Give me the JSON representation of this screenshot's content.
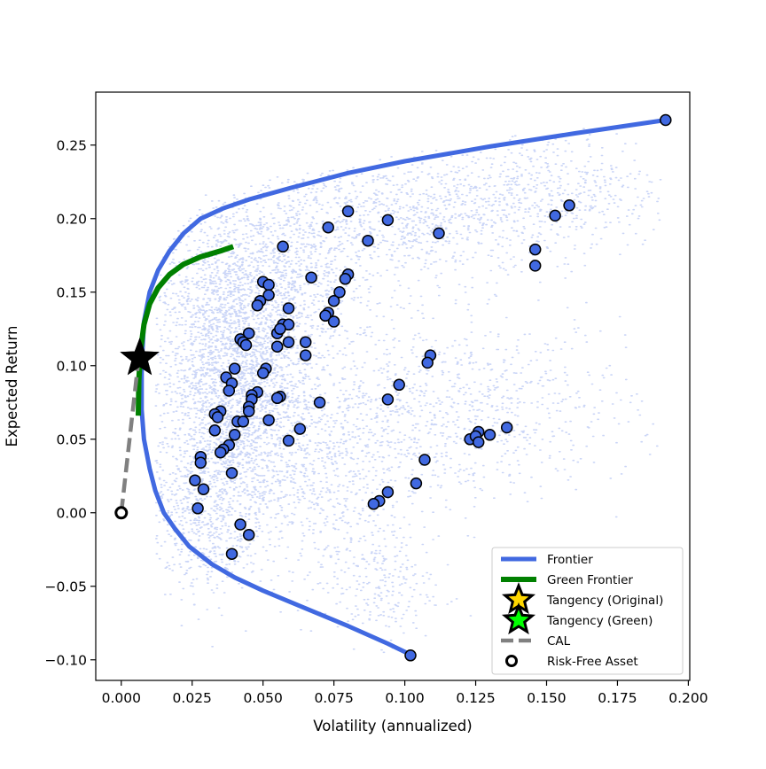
{
  "chart_data": {
    "type": "scatter",
    "title": "",
    "xlabel": "Volatility (annualized)",
    "ylabel": "Expected Return",
    "xlim": [
      -0.009,
      0.2005
    ],
    "ylim": [
      -0.114,
      0.286
    ],
    "xticks": [
      0.0,
      0.025,
      0.05,
      0.075,
      0.1,
      0.125,
      0.15,
      0.175,
      0.2
    ],
    "xtick_labels": [
      "0.000",
      "0.025",
      "0.050",
      "0.075",
      "0.100",
      "0.125",
      "0.150",
      "0.175",
      "0.200"
    ],
    "yticks": [
      -0.1,
      -0.05,
      0.0,
      0.05,
      0.1,
      0.15,
      0.2,
      0.25
    ],
    "ytick_labels": [
      "−0.10",
      "−0.05",
      "0.00",
      "0.05",
      "0.10",
      "0.15",
      "0.20",
      "0.25"
    ],
    "grid": false,
    "legend_position": "bottom-right",
    "colors": {
      "frontier": "#4169e1",
      "green_frontier": "#008000",
      "assets_fill": "#4169e1",
      "cloud": "#4169e1",
      "cal": "#808080",
      "tangency_original": "#ffd700",
      "tangency_green": "#00ff00"
    },
    "legend": [
      {
        "label": "Frontier",
        "kind": "line",
        "key": "frontier"
      },
      {
        "label": "Green Frontier",
        "kind": "line",
        "key": "green_frontier"
      },
      {
        "label": "Tangency (Original)",
        "kind": "star",
        "key": "tangency_original"
      },
      {
        "label": "Tangency (Green)",
        "kind": "star",
        "key": "tangency_green"
      },
      {
        "label": "CAL",
        "kind": "dashed",
        "key": "cal"
      },
      {
        "label": "Risk-Free Asset",
        "kind": "ring",
        "key": "rf"
      }
    ],
    "frontier": {
      "x": [
        0.1015,
        0.094,
        0.08,
        0.065,
        0.05,
        0.04,
        0.032,
        0.024,
        0.019,
        0.015,
        0.012,
        0.01,
        0.008,
        0.0072,
        0.0072,
        0.008,
        0.01,
        0.013,
        0.017,
        0.022,
        0.028,
        0.036,
        0.045,
        0.06,
        0.08,
        0.1,
        0.13,
        0.16,
        0.192
      ],
      "y": [
        -0.096,
        -0.089,
        -0.077,
        -0.065,
        -0.053,
        -0.044,
        -0.035,
        -0.023,
        -0.011,
        0.0,
        0.015,
        0.03,
        0.05,
        0.07,
        0.1,
        0.13,
        0.15,
        0.165,
        0.178,
        0.19,
        0.2,
        0.207,
        0.213,
        0.221,
        0.231,
        0.239,
        0.249,
        0.258,
        0.267
      ]
    },
    "green_frontier": {
      "x": [
        0.006,
        0.0062,
        0.0068,
        0.008,
        0.01,
        0.013,
        0.017,
        0.022,
        0.028,
        0.035,
        0.0395
      ],
      "y": [
        0.066,
        0.09,
        0.11,
        0.128,
        0.142,
        0.153,
        0.162,
        0.169,
        0.174,
        0.178,
        0.181
      ]
    },
    "cal": {
      "x": [
        0.0,
        0.0062
      ],
      "y": [
        0.0,
        0.106
      ]
    },
    "tangency_original": {
      "x": 0.0065,
      "y": 0.105
    },
    "tangency_green": {
      "x": 0.0065,
      "y": 0.105
    },
    "risk_free_asset": {
      "x": 0.0,
      "y": 0.0
    },
    "random_portfolios_note": "thousands of simulated portfolio points (light blue cloud)",
    "assets": [
      {
        "x": 0.192,
        "y": 0.267
      },
      {
        "x": 0.158,
        "y": 0.209
      },
      {
        "x": 0.153,
        "y": 0.202
      },
      {
        "x": 0.146,
        "y": 0.179
      },
      {
        "x": 0.146,
        "y": 0.168
      },
      {
        "x": 0.08,
        "y": 0.205
      },
      {
        "x": 0.094,
        "y": 0.199
      },
      {
        "x": 0.073,
        "y": 0.194
      },
      {
        "x": 0.112,
        "y": 0.19
      },
      {
        "x": 0.087,
        "y": 0.185
      },
      {
        "x": 0.057,
        "y": 0.181
      },
      {
        "x": 0.08,
        "y": 0.162
      },
      {
        "x": 0.079,
        "y": 0.159
      },
      {
        "x": 0.067,
        "y": 0.16
      },
      {
        "x": 0.05,
        "y": 0.157
      },
      {
        "x": 0.052,
        "y": 0.155
      },
      {
        "x": 0.077,
        "y": 0.15
      },
      {
        "x": 0.052,
        "y": 0.148
      },
      {
        "x": 0.075,
        "y": 0.144
      },
      {
        "x": 0.049,
        "y": 0.144
      },
      {
        "x": 0.048,
        "y": 0.141
      },
      {
        "x": 0.059,
        "y": 0.139
      },
      {
        "x": 0.073,
        "y": 0.136
      },
      {
        "x": 0.072,
        "y": 0.134
      },
      {
        "x": 0.075,
        "y": 0.13
      },
      {
        "x": 0.057,
        "y": 0.128
      },
      {
        "x": 0.059,
        "y": 0.128
      },
      {
        "x": 0.055,
        "y": 0.122
      },
      {
        "x": 0.056,
        "y": 0.125
      },
      {
        "x": 0.045,
        "y": 0.122
      },
      {
        "x": 0.042,
        "y": 0.118
      },
      {
        "x": 0.043,
        "y": 0.116
      },
      {
        "x": 0.044,
        "y": 0.114
      },
      {
        "x": 0.059,
        "y": 0.116
      },
      {
        "x": 0.065,
        "y": 0.116
      },
      {
        "x": 0.055,
        "y": 0.113
      },
      {
        "x": 0.065,
        "y": 0.107
      },
      {
        "x": 0.109,
        "y": 0.107
      },
      {
        "x": 0.108,
        "y": 0.102
      },
      {
        "x": 0.04,
        "y": 0.098
      },
      {
        "x": 0.051,
        "y": 0.098
      },
      {
        "x": 0.05,
        "y": 0.095
      },
      {
        "x": 0.037,
        "y": 0.092
      },
      {
        "x": 0.039,
        "y": 0.088
      },
      {
        "x": 0.098,
        "y": 0.087
      },
      {
        "x": 0.038,
        "y": 0.083
      },
      {
        "x": 0.048,
        "y": 0.082
      },
      {
        "x": 0.046,
        "y": 0.08
      },
      {
        "x": 0.056,
        "y": 0.079
      },
      {
        "x": 0.055,
        "y": 0.078
      },
      {
        "x": 0.046,
        "y": 0.077
      },
      {
        "x": 0.094,
        "y": 0.077
      },
      {
        "x": 0.07,
        "y": 0.075
      },
      {
        "x": 0.045,
        "y": 0.072
      },
      {
        "x": 0.045,
        "y": 0.069
      },
      {
        "x": 0.035,
        "y": 0.069
      },
      {
        "x": 0.033,
        "y": 0.067
      },
      {
        "x": 0.034,
        "y": 0.065
      },
      {
        "x": 0.041,
        "y": 0.062
      },
      {
        "x": 0.043,
        "y": 0.062
      },
      {
        "x": 0.052,
        "y": 0.063
      },
      {
        "x": 0.063,
        "y": 0.057
      },
      {
        "x": 0.033,
        "y": 0.056
      },
      {
        "x": 0.04,
        "y": 0.053
      },
      {
        "x": 0.136,
        "y": 0.058
      },
      {
        "x": 0.126,
        "y": 0.055
      },
      {
        "x": 0.13,
        "y": 0.053
      },
      {
        "x": 0.123,
        "y": 0.05
      },
      {
        "x": 0.125,
        "y": 0.052
      },
      {
        "x": 0.126,
        "y": 0.048
      },
      {
        "x": 0.059,
        "y": 0.049
      },
      {
        "x": 0.038,
        "y": 0.046
      },
      {
        "x": 0.036,
        "y": 0.043
      },
      {
        "x": 0.035,
        "y": 0.041
      },
      {
        "x": 0.028,
        "y": 0.038
      },
      {
        "x": 0.028,
        "y": 0.034
      },
      {
        "x": 0.107,
        "y": 0.036
      },
      {
        "x": 0.039,
        "y": 0.027
      },
      {
        "x": 0.026,
        "y": 0.022
      },
      {
        "x": 0.104,
        "y": 0.02
      },
      {
        "x": 0.029,
        "y": 0.016
      },
      {
        "x": 0.094,
        "y": 0.014
      },
      {
        "x": 0.091,
        "y": 0.008
      },
      {
        "x": 0.089,
        "y": 0.006
      },
      {
        "x": 0.027,
        "y": 0.003
      },
      {
        "x": 0.042,
        "y": -0.008
      },
      {
        "x": 0.045,
        "y": -0.015
      },
      {
        "x": 0.039,
        "y": -0.028
      },
      {
        "x": 0.102,
        "y": -0.097
      }
    ]
  }
}
